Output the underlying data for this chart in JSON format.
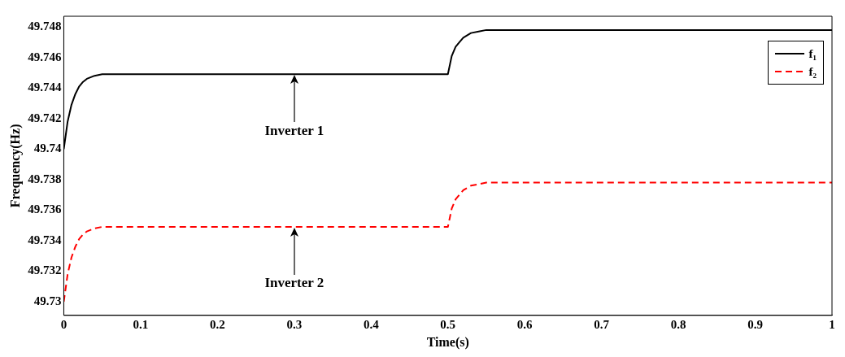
{
  "chart_data": {
    "type": "line",
    "xlabel": "Time(s)",
    "ylabel": "Frequency(Hz)",
    "xlim": [
      0,
      1
    ],
    "xticks": [
      0,
      0.1,
      0.2,
      0.3,
      0.4,
      0.5,
      0.6,
      0.7,
      0.8,
      0.9,
      1
    ],
    "ylim": [
      49.7291,
      49.7487
    ],
    "yticks": [
      49.73,
      49.732,
      49.734,
      49.736,
      49.738,
      49.74,
      49.742,
      49.744,
      49.746,
      49.748
    ],
    "legend": "top right",
    "grid": false,
    "marker": "none",
    "series": [
      {
        "name": "f₁",
        "color": "#000000",
        "line_style": "solid",
        "x": [
          0,
          0.005,
          0.01,
          0.015,
          0.02,
          0.025,
          0.03,
          0.04,
          0.05,
          0.06,
          0.08,
          0.5,
          0.505,
          0.51,
          0.515,
          0.52,
          0.53,
          0.54,
          0.55,
          0.56,
          0.58,
          1
        ],
        "values": [
          49.74,
          49.7418,
          49.7429,
          49.7436,
          49.7441,
          49.7444,
          49.7446,
          49.7448,
          49.7449,
          49.7449,
          49.7449,
          49.7449,
          49.7461,
          49.7467,
          49.747,
          49.7473,
          49.7476,
          49.7477,
          49.7478,
          49.7478,
          49.7478,
          49.7478
        ]
      },
      {
        "name": "f₂",
        "color": "#ff0000",
        "line_style": "dashed",
        "x": [
          0,
          0.005,
          0.01,
          0.015,
          0.02,
          0.025,
          0.03,
          0.04,
          0.05,
          0.06,
          0.08,
          0.5,
          0.505,
          0.51,
          0.515,
          0.52,
          0.53,
          0.54,
          0.55,
          0.56,
          0.58,
          1
        ],
        "values": [
          49.73,
          49.7318,
          49.7329,
          49.7336,
          49.7341,
          49.7344,
          49.7346,
          49.7348,
          49.7349,
          49.7349,
          49.7349,
          49.7349,
          49.7361,
          49.7367,
          49.737,
          49.7373,
          49.7376,
          49.7377,
          49.7378,
          49.7378,
          49.7378,
          49.7378
        ]
      }
    ],
    "annotations": [
      {
        "text": "Inverter 1",
        "x": 0.3,
        "y": 49.7449
      },
      {
        "text": "Inverter 2",
        "x": 0.3,
        "y": 49.7349
      }
    ]
  }
}
